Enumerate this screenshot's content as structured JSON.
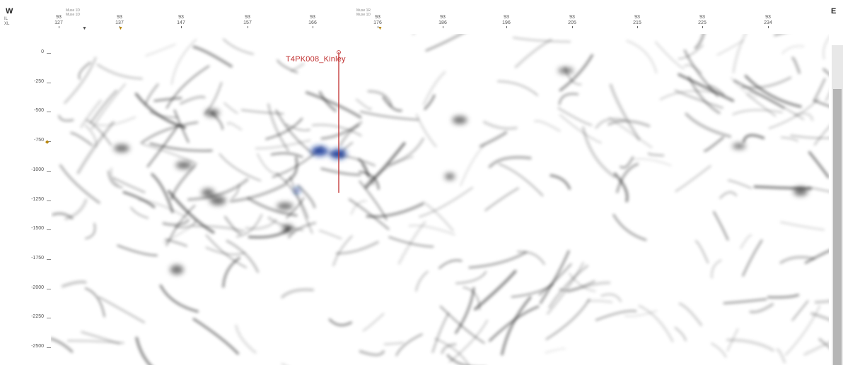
{
  "header": {
    "west_label": "W",
    "east_label": "E",
    "row_labels": [
      "IL",
      "XL"
    ],
    "trace_ticks": [
      {
        "il": "93",
        "xl": "127"
      },
      {
        "il": "93",
        "xl": "137"
      },
      {
        "il": "93",
        "xl": "147"
      },
      {
        "il": "93",
        "xl": "157"
      },
      {
        "il": "93",
        "xl": "166"
      },
      {
        "il": "93",
        "xl": "176"
      },
      {
        "il": "93",
        "xl": "186"
      },
      {
        "il": "93",
        "xl": "196"
      },
      {
        "il": "93",
        "xl": "205"
      },
      {
        "il": "93",
        "xl": "215"
      },
      {
        "il": "93",
        "xl": "225"
      },
      {
        "il": "93",
        "xl": "234"
      }
    ],
    "well_headers": [
      "Muse 1D",
      "Muse 1D",
      "Muse 1R",
      "Muse 1D"
    ]
  },
  "depth_axis": {
    "labels": [
      "0",
      "-250",
      "-500",
      "-750",
      "-1000",
      "-1250",
      "-1500",
      "-1750",
      "-2000",
      "-2250",
      "-2500"
    ],
    "values": [
      0,
      -250,
      -500,
      -750,
      -1000,
      -1250,
      -1500,
      -1750,
      -2000,
      -2250,
      -2500
    ]
  },
  "well": {
    "name": "T4PK008_Kinley",
    "line_color": "#c03030"
  },
  "colors": {
    "background": "#ffffff",
    "amplitude": "#000000",
    "hotspot": "#1a3a9a",
    "marker_gold": "#b8860b"
  }
}
